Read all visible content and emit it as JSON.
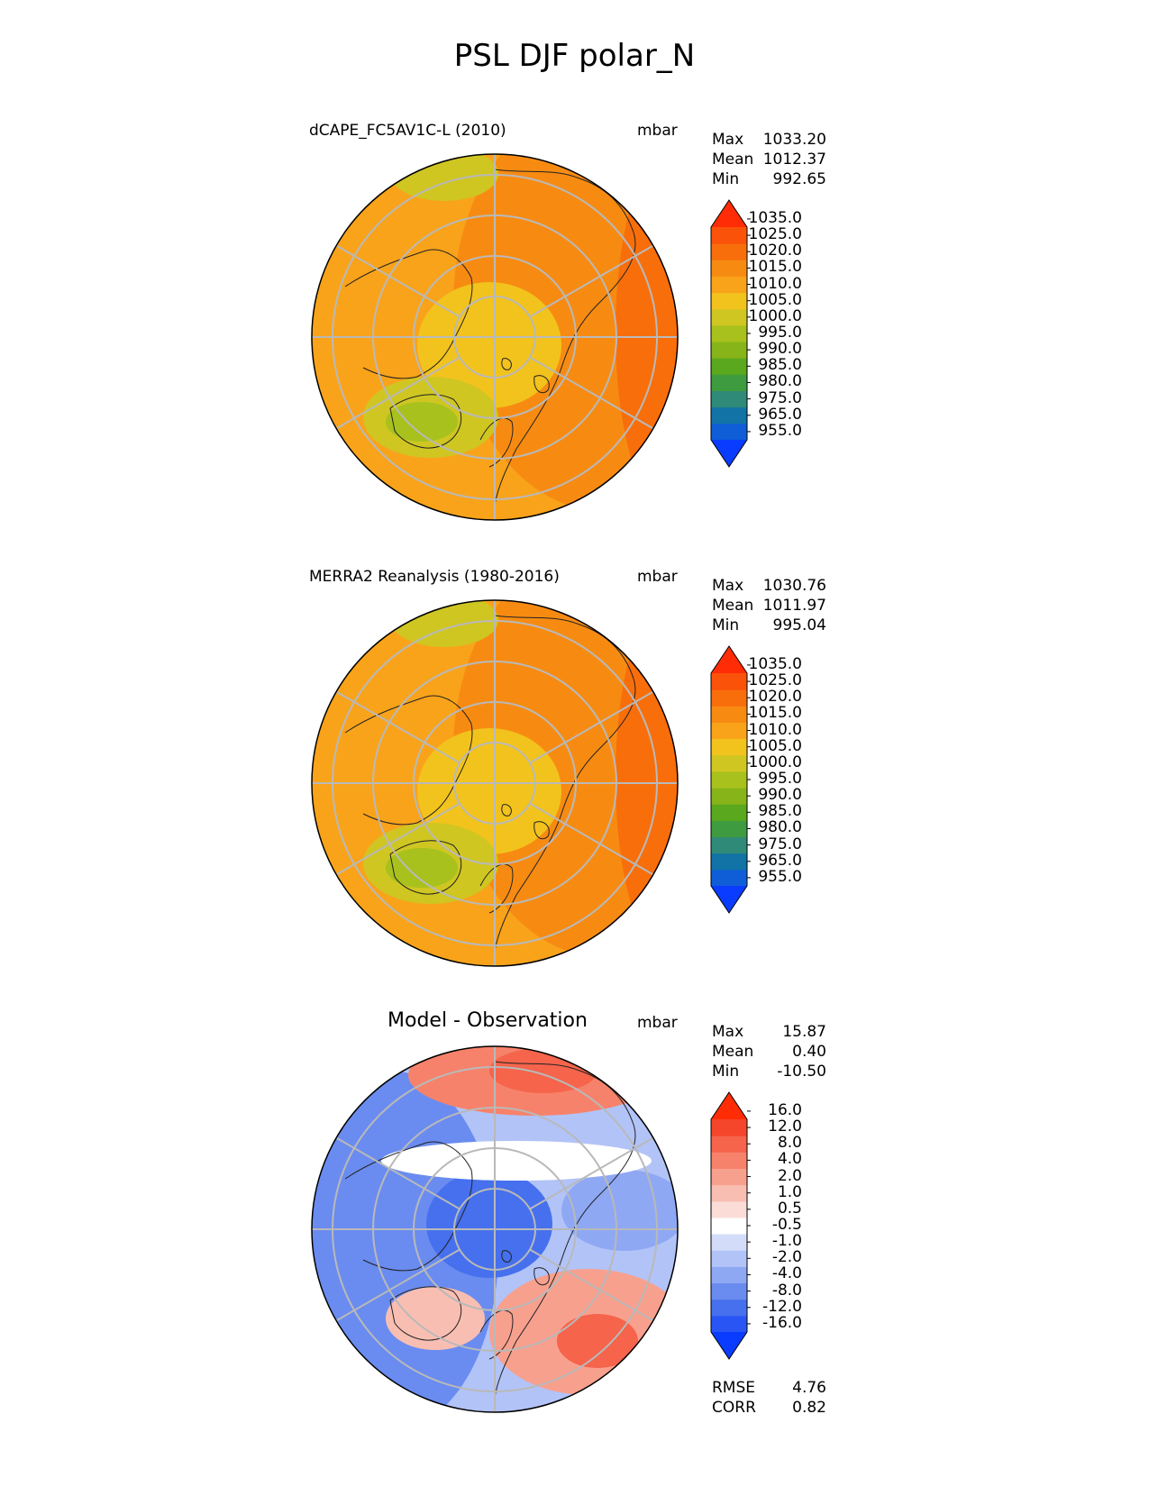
{
  "figure_title": "PSL DJF polar_N",
  "chart_data": [
    {
      "type": "heatmap",
      "projection": "north-polar-stereographic",
      "title": "dCAPE_FC5AV1C-L (2010)",
      "units": "mbar",
      "stats": [
        {
          "label": "Max",
          "value": "1033.20"
        },
        {
          "label": "Mean",
          "value": "1012.37"
        },
        {
          "label": "Min",
          "value": "992.65"
        }
      ],
      "colorbar": {
        "levels": [
          "955.0",
          "965.0",
          "975.0",
          "980.0",
          "985.0",
          "990.0",
          "995.0",
          "1000.0",
          "1005.0",
          "1010.0",
          "1015.0",
          "1020.0",
          "1025.0",
          "1035.0"
        ],
        "colors": [
          "#0a3cff",
          "#0f5ed8",
          "#1173a6",
          "#2f8a78",
          "#3e9b3f",
          "#5aa81e",
          "#86b419",
          "#a8c11d",
          "#cfc622",
          "#f2c31d",
          "#f9a31a",
          "#f78b12",
          "#f86e0b",
          "#fb520a",
          "#ff2c05"
        ],
        "extend": "both"
      }
    },
    {
      "type": "heatmap",
      "projection": "north-polar-stereographic",
      "title": "MERRA2 Reanalysis (1980-2016)",
      "units": "mbar",
      "stats": [
        {
          "label": "Max",
          "value": "1030.76"
        },
        {
          "label": "Mean",
          "value": "1011.97"
        },
        {
          "label": "Min",
          "value": "995.04"
        }
      ],
      "colorbar": {
        "levels": [
          "955.0",
          "965.0",
          "975.0",
          "980.0",
          "985.0",
          "990.0",
          "995.0",
          "1000.0",
          "1005.0",
          "1010.0",
          "1015.0",
          "1020.0",
          "1025.0",
          "1035.0"
        ],
        "colors": [
          "#0a3cff",
          "#0f5ed8",
          "#1173a6",
          "#2f8a78",
          "#3e9b3f",
          "#5aa81e",
          "#86b419",
          "#a8c11d",
          "#cfc622",
          "#f2c31d",
          "#f9a31a",
          "#f78b12",
          "#f86e0b",
          "#fb520a",
          "#ff2c05"
        ],
        "extend": "both"
      }
    },
    {
      "type": "heatmap",
      "projection": "north-polar-stereographic",
      "title": "Model - Observation",
      "units": "mbar",
      "stats": [
        {
          "label": "Max",
          "value": "15.87"
        },
        {
          "label": "Mean",
          "value": "0.40"
        },
        {
          "label": "Min",
          "value": "-10.50"
        }
      ],
      "metrics": [
        {
          "label": "RMSE",
          "value": "4.76"
        },
        {
          "label": "CORR",
          "value": "0.82"
        }
      ],
      "colorbar": {
        "levels": [
          "-16.0",
          "-12.0",
          "-8.0",
          "-4.0",
          "-2.0",
          "-1.0",
          "-0.5",
          "0.5",
          "1.0",
          "2.0",
          "4.0",
          "8.0",
          "12.0",
          "16.0"
        ],
        "colors": [
          "#0a3cff",
          "#2a55f5",
          "#4670ee",
          "#6a8cf0",
          "#8ea8f4",
          "#b2c3f7",
          "#d3ddfa",
          "#ffffff",
          "#fbdcd6",
          "#f9beb2",
          "#f8a08e",
          "#f7826b",
          "#f5644b",
          "#f5462c",
          "#ff2c05"
        ],
        "extend": "both"
      }
    }
  ]
}
